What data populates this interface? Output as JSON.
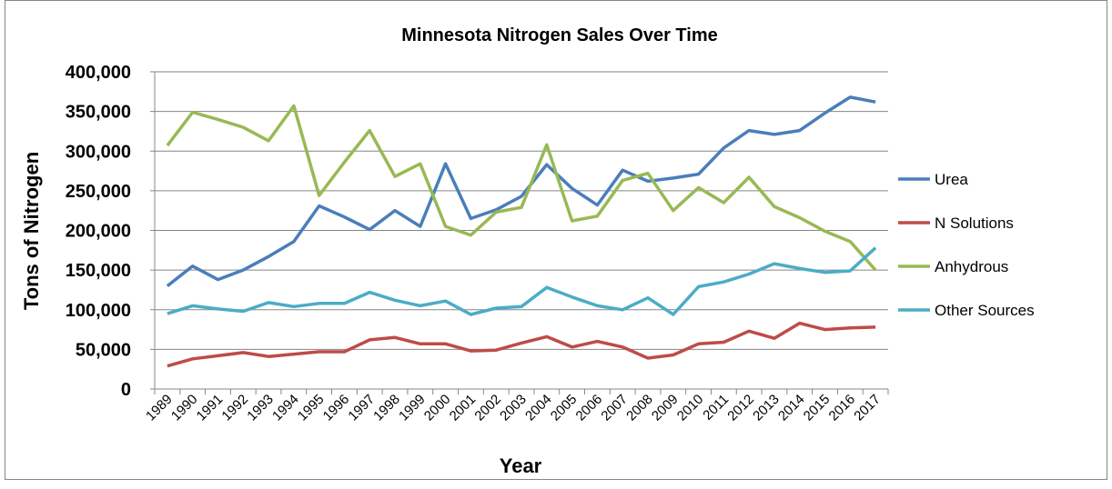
{
  "chart_data": {
    "type": "line",
    "title": "Minnesota Nitrogen Sales Over Time",
    "x_label": "Year",
    "y_label": "Tons of Nitrogen",
    "categories": [
      "1989",
      "1990",
      "1991",
      "1992",
      "1993",
      "1994",
      "1995",
      "1996",
      "1997",
      "1998",
      "1999",
      "2000",
      "2001",
      "2002",
      "2003",
      "2004",
      "2005",
      "2006",
      "2007",
      "2008",
      "2009",
      "2010",
      "2011",
      "2012",
      "2013",
      "2014",
      "2015",
      "2016",
      "2017"
    ],
    "series": [
      {
        "name": "Urea",
        "color": "#4a7ebb",
        "values": [
          130000,
          155000,
          138000,
          150000,
          167000,
          186000,
          231000,
          217000,
          201000,
          225000,
          205000,
          284000,
          215000,
          226000,
          243000,
          283000,
          253000,
          232000,
          276000,
          262000,
          266000,
          271000,
          304000,
          326000,
          321000,
          326000,
          348000,
          368000,
          362000
        ]
      },
      {
        "name": "N Solutions",
        "color": "#be4b48",
        "values": [
          29000,
          38000,
          42000,
          46000,
          41000,
          44000,
          47000,
          47000,
          62000,
          65000,
          57000,
          57000,
          48000,
          49000,
          58000,
          66000,
          53000,
          60000,
          53000,
          39000,
          43000,
          57000,
          59000,
          73000,
          64000,
          83000,
          75000,
          77000,
          78000
        ]
      },
      {
        "name": "Anhydrous",
        "color": "#98b954",
        "values": [
          307000,
          349000,
          340000,
          330000,
          313000,
          357000,
          244000,
          286000,
          326000,
          268000,
          284000,
          205000,
          194000,
          223000,
          229000,
          308000,
          212000,
          218000,
          263000,
          272000,
          225000,
          254000,
          235000,
          267000,
          230000,
          216000,
          199000,
          186000,
          150000
        ]
      },
      {
        "name": "Other Sources",
        "color": "#4bacc6",
        "values": [
          95000,
          105000,
          101000,
          98000,
          109000,
          104000,
          108000,
          108000,
          122000,
          112000,
          105000,
          111000,
          94000,
          102000,
          104000,
          128000,
          116000,
          105000,
          100000,
          115000,
          94000,
          129000,
          135000,
          145000,
          158000,
          152000,
          147000,
          149000,
          178000
        ]
      }
    ],
    "ylim": [
      0,
      400000
    ],
    "yticks": [
      0,
      {
        "value": 50000,
        "label": "50,000"
      },
      {
        "value": 100000,
        "label": "100,000"
      },
      {
        "value": 150000,
        "label": "150,000"
      },
      {
        "value": 200000,
        "label": "200,000"
      },
      {
        "value": 250000,
        "label": "250,000"
      },
      {
        "value": 300000,
        "label": "300,000"
      },
      {
        "value": 350000,
        "label": "350,000"
      },
      {
        "value": 400000,
        "label": "400,000"
      }
    ],
    "grid": true,
    "legend": "right"
  }
}
